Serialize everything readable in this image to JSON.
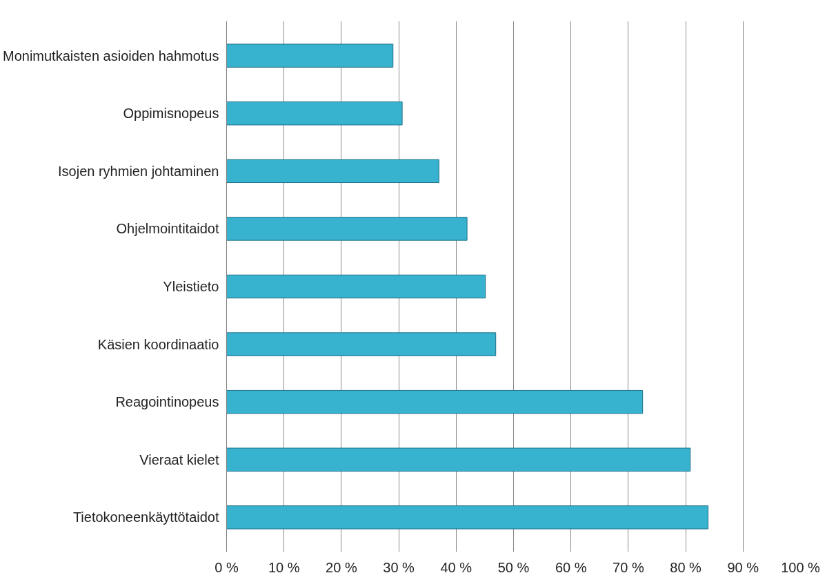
{
  "chart_data": {
    "type": "bar",
    "orientation": "horizontal",
    "categories": [
      "Monimutkaisten asioiden hahmotus",
      "Oppimisnopeus",
      "Isojen ryhmien johtaminen",
      "Ohjelmointitaidot",
      "Yleistieto",
      "Käsien koordinaatio",
      "Reagointinopeus",
      "Vieraat kielet",
      "Tietokoneenkäyttötaidot"
    ],
    "values": [
      29,
      30.6,
      37,
      41.9,
      45.1,
      46.9,
      72.5,
      80.8,
      83.9
    ],
    "color": "#37b2cf",
    "xlim": [
      0,
      100
    ],
    "xticks": [
      {
        "value": 0,
        "label": "0 %"
      },
      {
        "value": 10,
        "label": "10 %"
      },
      {
        "value": 20,
        "label": "20 %"
      },
      {
        "value": 30,
        "label": "30 %"
      },
      {
        "value": 40,
        "label": "40 %"
      },
      {
        "value": 50,
        "label": "50 %"
      },
      {
        "value": 60,
        "label": "60 %"
      },
      {
        "value": 70,
        "label": "70 %"
      },
      {
        "value": 80,
        "label": "80 %"
      },
      {
        "value": 90,
        "label": "90 %"
      },
      {
        "value": 100,
        "label": "100 %"
      }
    ],
    "grid": "x"
  }
}
